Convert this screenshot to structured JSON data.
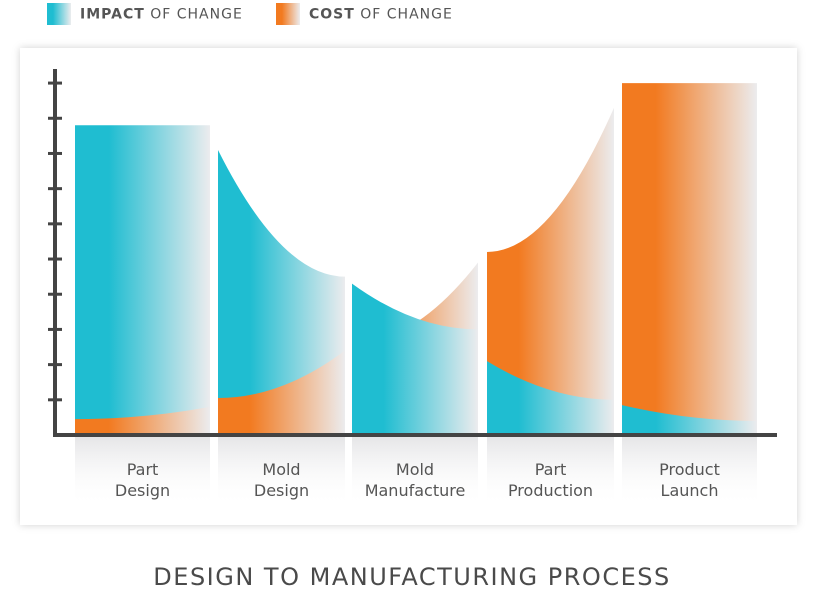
{
  "chart_data": {
    "type": "area-bands",
    "title": "DESIGN TO MANUFACTURING PROCESS",
    "categories": [
      "Part Design",
      "Mold Design",
      "Mold Manufacture",
      "Part Production",
      "Product Launch"
    ],
    "series": [
      {
        "name": "IMPACT OF CHANGE",
        "color": "#1fbdd1",
        "values": [
          [
            8.8,
            8.8
          ],
          [
            8.1,
            4.5
          ],
          [
            4.3,
            3.0
          ],
          [
            2.1,
            1.0
          ],
          [
            0.85,
            0.4
          ]
        ]
      },
      {
        "name": "COST OF CHANGE",
        "color": "#f27a20",
        "values": [
          [
            0.45,
            0.8
          ],
          [
            1.05,
            2.4
          ],
          [
            2.6,
            4.9
          ],
          [
            5.2,
            9.3
          ],
          [
            10.0,
            10.0
          ]
        ]
      }
    ],
    "ylim": [
      0,
      10.4
    ],
    "yticks": [
      1,
      2,
      3,
      4,
      5,
      6,
      7,
      8,
      9,
      10
    ]
  }
}
